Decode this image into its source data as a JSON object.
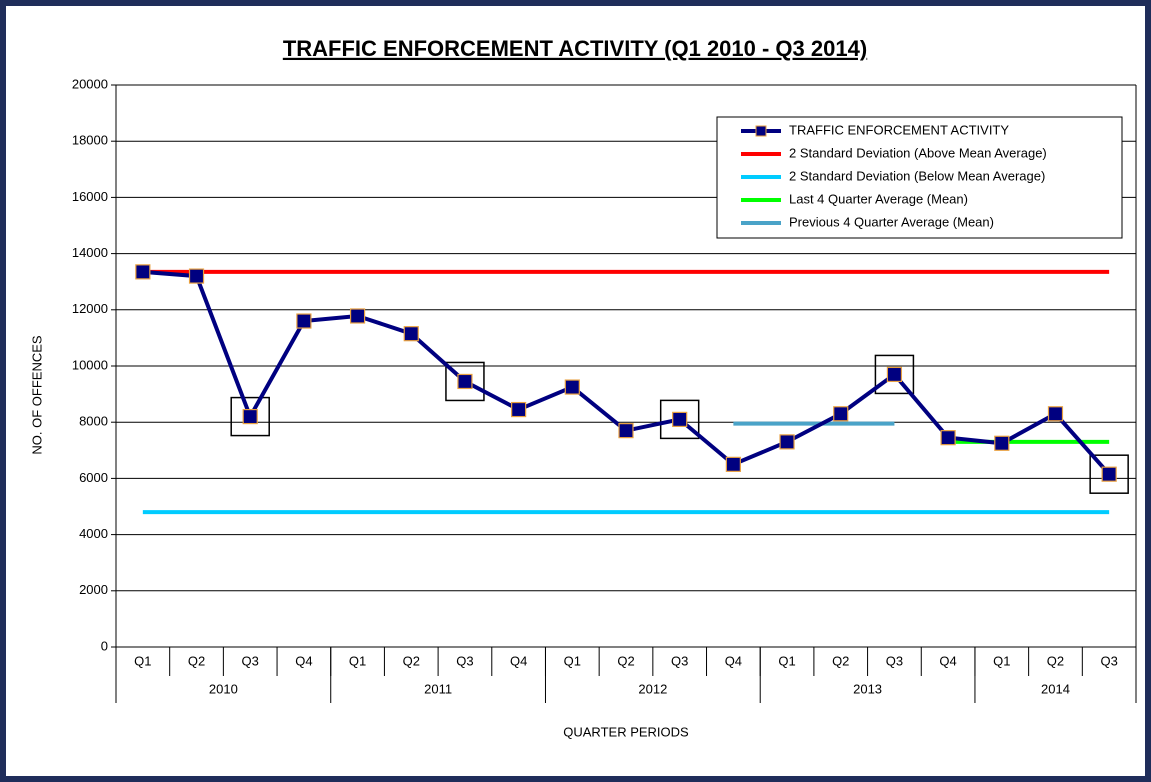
{
  "chart_data": {
    "type": "line",
    "title": "TRAFFIC ENFORCEMENT  ACTIVITY  (Q1 2010 - Q3 2014)",
    "x_label": "QUARTER PERIODS",
    "y_label": "NO. OF OFFENCES",
    "categories": [
      "Q1",
      "Q2",
      "Q3",
      "Q4",
      "Q1",
      "Q2",
      "Q3",
      "Q4",
      "Q1",
      "Q2",
      "Q3",
      "Q4",
      "Q1",
      "Q2",
      "Q3",
      "Q4",
      "Q1",
      "Q2",
      "Q3"
    ],
    "groups": [
      {
        "name": "2010",
        "count": 4
      },
      {
        "name": "2011",
        "count": 4
      },
      {
        "name": "2012",
        "count": 4
      },
      {
        "name": "2013",
        "count": 4
      },
      {
        "name": "2014",
        "count": 3
      }
    ],
    "series": [
      {
        "name": "TRAFFIC ENFORCEMENT ACTIVITY",
        "color": "#000080",
        "marker_color": "#000080",
        "marker_edge": "#e8a040",
        "values": [
          13350,
          13200,
          8200,
          11600,
          11780,
          11150,
          9450,
          8450,
          9250,
          7700,
          8100,
          6500,
          7300,
          8300,
          9700,
          7450,
          7250,
          8300,
          6150
        ]
      }
    ],
    "highlighted": [
      2,
      6,
      10,
      14,
      18
    ],
    "reference_lines": [
      {
        "name": "2 Standard Deviation (Above Mean Average)",
        "color": "#ff0000",
        "value": 13350,
        "from": 0,
        "to": 18
      },
      {
        "name": "2 Standard Deviation (Below Mean Average)",
        "color": "#00ccff",
        "value": 4800,
        "from": 0,
        "to": 18
      },
      {
        "name": "Last 4 Quarter Average (Mean)",
        "color": "#00ff00",
        "value": 7300,
        "from": 15,
        "to": 18
      },
      {
        "name": "Previous 4 Quarter Average (Mean)",
        "color": "#4aa3c8",
        "value": 7950,
        "from": 11,
        "to": 14
      }
    ],
    "ylim": [
      0,
      20000
    ],
    "yticks": [
      0,
      2000,
      4000,
      6000,
      8000,
      10000,
      12000,
      14000,
      16000,
      18000,
      20000
    ],
    "grid": true,
    "legend": "upper right"
  }
}
